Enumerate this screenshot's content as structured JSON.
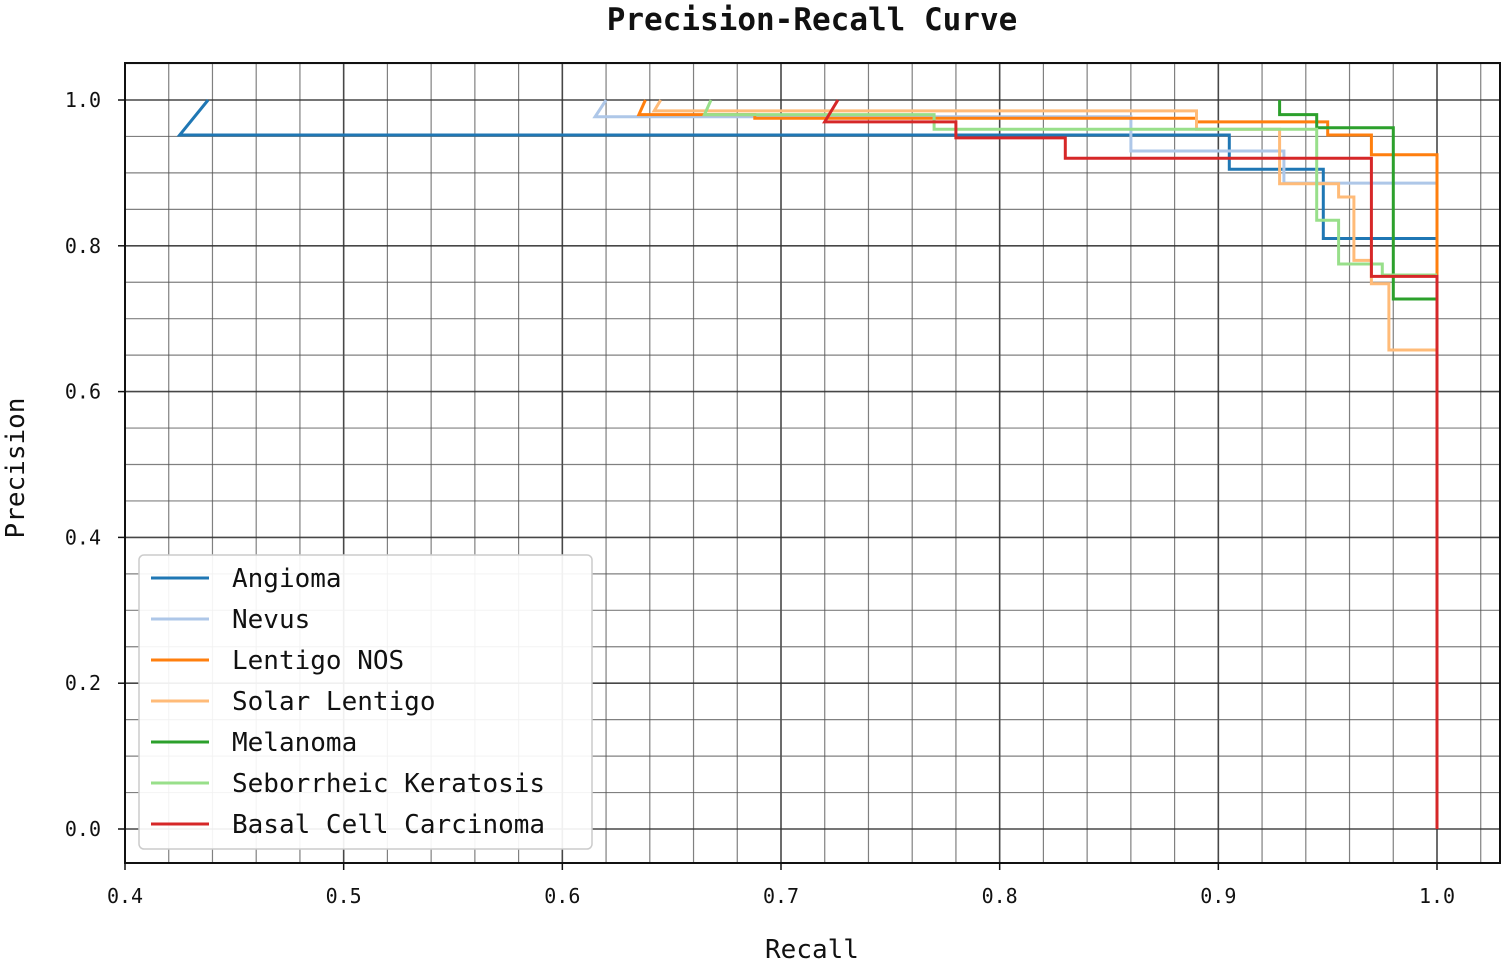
{
  "chart_data": {
    "type": "line",
    "title": "Precision-Recall Curve",
    "xlabel": "Recall",
    "ylabel": "Precision",
    "xlim": [
      0.4,
      1.02
    ],
    "ylim": [
      -0.05,
      1.05
    ],
    "x_ticks": [
      0.4,
      0.5,
      0.6,
      0.7,
      0.8,
      0.9,
      1.0
    ],
    "x_tick_labels": [
      "0.4",
      "0.5",
      "0.6",
      "0.7",
      "0.8",
      "0.9",
      "1.0"
    ],
    "y_ticks": [
      0.0,
      0.2,
      0.4,
      0.6,
      0.8,
      1.0
    ],
    "y_tick_labels": [
      "0.0",
      "0.2",
      "0.4",
      "0.6",
      "0.8",
      "1.0"
    ],
    "x_minor_step": 0.02,
    "y_minor_step": 0.05,
    "grid": true,
    "legend_position": "lower-left",
    "series": [
      {
        "name": "Angioma",
        "color": "#1f77b4",
        "points": [
          [
            0.438,
            1.0
          ],
          [
            0.425,
            0.952
          ],
          [
            0.905,
            0.952
          ],
          [
            0.905,
            0.905
          ],
          [
            0.948,
            0.905
          ],
          [
            0.948,
            0.81
          ],
          [
            1.0,
            0.81
          ]
        ]
      },
      {
        "name": "Nevus",
        "color": "#aec7e8",
        "points": [
          [
            0.62,
            1.0
          ],
          [
            0.615,
            0.977
          ],
          [
            0.86,
            0.977
          ],
          [
            0.86,
            0.93
          ],
          [
            0.93,
            0.93
          ],
          [
            0.93,
            0.886
          ],
          [
            1.0,
            0.886
          ]
        ]
      },
      {
        "name": "Lentigo NOS",
        "color": "#ff7f0e",
        "points": [
          [
            0.638,
            1.0
          ],
          [
            0.635,
            0.98
          ],
          [
            0.688,
            0.98
          ],
          [
            0.688,
            0.975
          ],
          [
            0.89,
            0.975
          ],
          [
            0.89,
            0.97
          ],
          [
            0.95,
            0.97
          ],
          [
            0.95,
            0.952
          ],
          [
            0.97,
            0.952
          ],
          [
            0.97,
            0.925
          ],
          [
            1.0,
            0.925
          ],
          [
            1.0,
            0.0
          ]
        ]
      },
      {
        "name": "Solar Lentigo",
        "color": "#ffbb78",
        "points": [
          [
            0.645,
            1.0
          ],
          [
            0.642,
            0.985
          ],
          [
            0.89,
            0.985
          ],
          [
            0.89,
            0.96
          ],
          [
            0.928,
            0.96
          ],
          [
            0.928,
            0.885
          ],
          [
            0.955,
            0.885
          ],
          [
            0.955,
            0.867
          ],
          [
            0.962,
            0.867
          ],
          [
            0.962,
            0.78
          ],
          [
            0.97,
            0.78
          ],
          [
            0.97,
            0.748
          ],
          [
            0.978,
            0.748
          ],
          [
            0.978,
            0.657
          ],
          [
            1.0,
            0.657
          ]
        ]
      },
      {
        "name": "Melanoma",
        "color": "#2ca02c",
        "points": [
          [
            0.928,
            1.0
          ],
          [
            0.928,
            0.98
          ],
          [
            0.945,
            0.98
          ],
          [
            0.945,
            0.962
          ],
          [
            0.98,
            0.962
          ],
          [
            0.98,
            0.727
          ],
          [
            1.0,
            0.727
          ]
        ]
      },
      {
        "name": "Seborrheic Keratosis",
        "color": "#98df8a",
        "points": [
          [
            0.668,
            1.0
          ],
          [
            0.665,
            0.98
          ],
          [
            0.77,
            0.98
          ],
          [
            0.77,
            0.96
          ],
          [
            0.945,
            0.96
          ],
          [
            0.945,
            0.835
          ],
          [
            0.955,
            0.835
          ],
          [
            0.955,
            0.775
          ],
          [
            0.975,
            0.775
          ],
          [
            0.975,
            0.76
          ],
          [
            1.0,
            0.76
          ]
        ]
      },
      {
        "name": "Basal Cell Carcinoma",
        "color": "#d62728",
        "points": [
          [
            0.726,
            1.0
          ],
          [
            0.72,
            0.97
          ],
          [
            0.78,
            0.97
          ],
          [
            0.78,
            0.948
          ],
          [
            0.83,
            0.948
          ],
          [
            0.83,
            0.92
          ],
          [
            0.97,
            0.92
          ],
          [
            0.97,
            0.758
          ],
          [
            1.0,
            0.758
          ],
          [
            1.0,
            0.0
          ]
        ]
      }
    ]
  }
}
